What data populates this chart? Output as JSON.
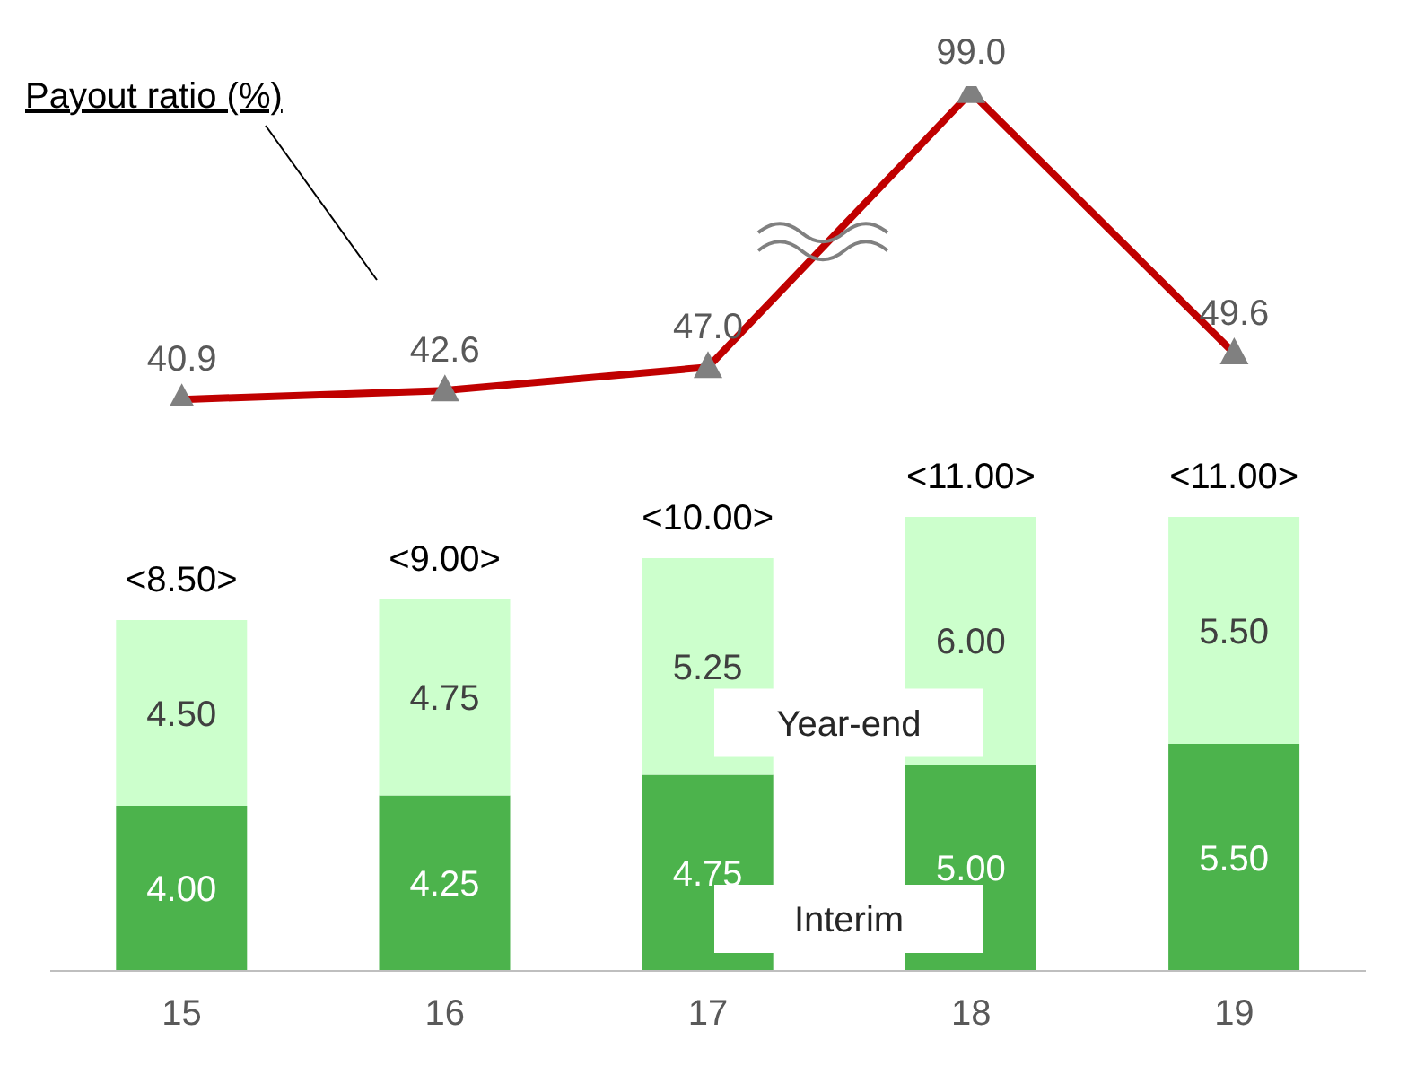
{
  "chart_data": [
    {
      "type": "line",
      "categories": [
        null,
        null,
        null,
        null,
        null
      ],
      "marker": "triangle",
      "tick_labels": false,
      "series": [
        {
          "name": "Payout ratio (%)",
          "color": "#c00000",
          "values": [
            40.9,
            42.6,
            47.0,
            99.0,
            49.6
          ],
          "value_labels": [
            "40.9",
            "42.6",
            "47.0",
            "99.0",
            "49.6"
          ]
        }
      ]
    },
    {
      "type": "bar",
      "categories": [
        "15",
        "16",
        "17",
        "18",
        "19"
      ],
      "stacked": true,
      "tick_labels": "x",
      "totals": [
        "<8.50>",
        "<9.00>",
        "<10.00>",
        "<11.00>",
        "<11.00>"
      ],
      "series": [
        {
          "name": "Interim",
          "color": "#4cb34c",
          "values": [
            4.0,
            4.25,
            4.75,
            5.0,
            5.5
          ],
          "value_labels": [
            "4.00",
            "4.25",
            "4.75",
            "5.00",
            "5.50"
          ]
        },
        {
          "name": "Year-end",
          "color": "#ccffcc",
          "values": [
            4.5,
            4.75,
            5.25,
            6.0,
            5.5
          ],
          "value_labels": [
            "4.50",
            "4.75",
            "5.25",
            "6.00",
            "5.50"
          ]
        }
      ]
    }
  ]
}
